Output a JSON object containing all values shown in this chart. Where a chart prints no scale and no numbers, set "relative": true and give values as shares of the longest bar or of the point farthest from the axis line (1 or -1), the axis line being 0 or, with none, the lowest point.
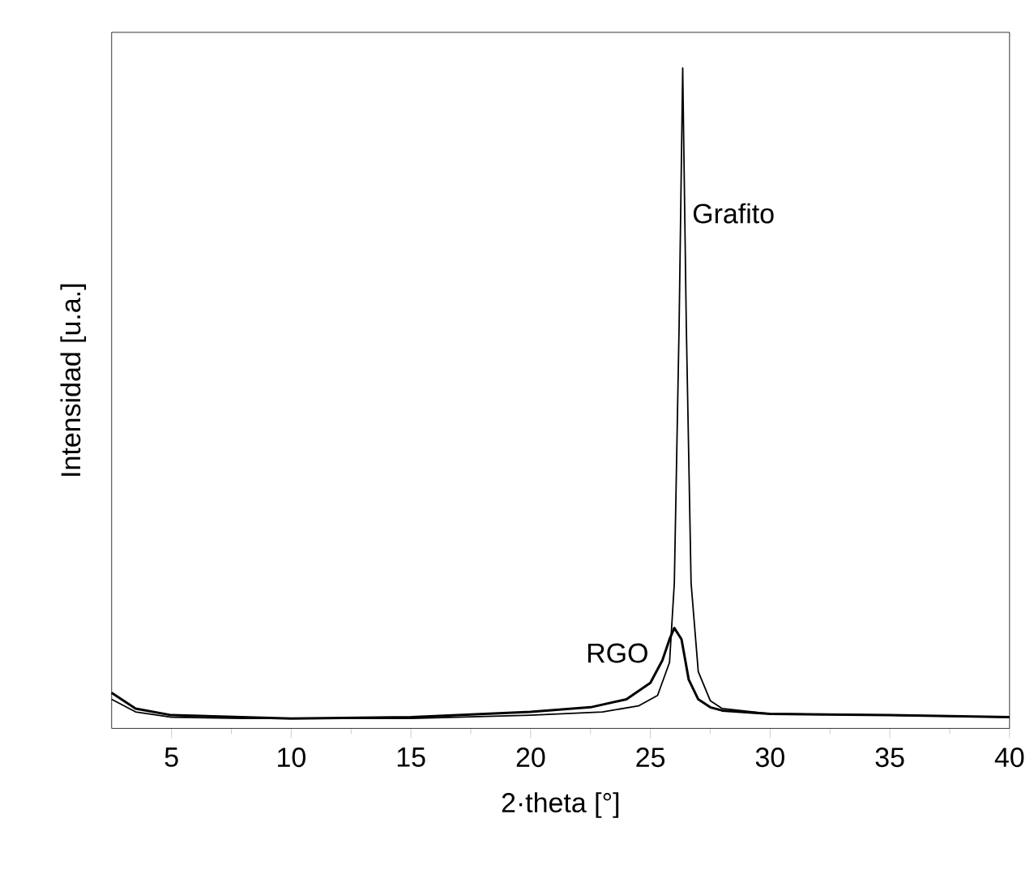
{
  "chart_data": {
    "type": "line",
    "xlabel": "2·theta [°]",
    "ylabel": "Intensidad [u.a.]",
    "relative": true,
    "xlim": [
      2.5,
      40
    ],
    "xticks": [
      5,
      10,
      15,
      20,
      25,
      30,
      35,
      40
    ],
    "series": [
      {
        "name": "Grafito",
        "color": "#000000",
        "x": [
          2.5,
          3.5,
          5,
          8,
          15,
          20,
          23,
          24.5,
          25.3,
          25.8,
          26.0,
          26.2,
          26.35,
          26.5,
          26.7,
          27.0,
          27.5,
          28,
          30,
          35,
          40
        ],
        "values": [
          0.044,
          0.025,
          0.017,
          0.015,
          0.015,
          0.02,
          0.025,
          0.034,
          0.05,
          0.1,
          0.22,
          0.61,
          1,
          0.61,
          0.22,
          0.086,
          0.042,
          0.03,
          0.022,
          0.02,
          0.017
        ]
      },
      {
        "name": "RGO",
        "color": "#000000",
        "x": [
          2.5,
          3.5,
          5,
          10,
          15,
          20,
          22.5,
          24,
          25,
          25.5,
          25.8,
          26.0,
          26.3,
          26.6,
          27,
          27.5,
          28,
          30,
          35,
          40
        ],
        "values": [
          0.054,
          0.03,
          0.02,
          0.015,
          0.017,
          0.025,
          0.032,
          0.044,
          0.069,
          0.103,
          0.135,
          0.152,
          0.135,
          0.074,
          0.044,
          0.032,
          0.027,
          0.022,
          0.02,
          0.017
        ]
      }
    ]
  }
}
